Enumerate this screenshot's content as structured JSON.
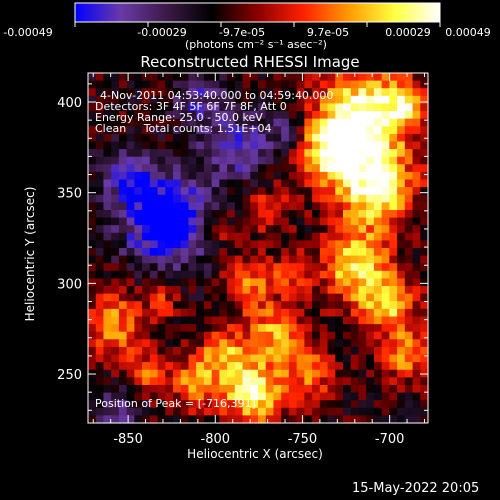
{
  "colorbar": {
    "ticks": [
      "-0.00049",
      "-0.00029",
      "-9.7e-05",
      "9.7e-05",
      "0.00029",
      "0.00049"
    ],
    "min": -0.00049,
    "max": 0.00049,
    "unit_label": "(photons cm⁻² s⁻¹ asec⁻²)"
  },
  "chart_data": {
    "type": "heatmap",
    "title": "Reconstructed RHESSI Image",
    "xlabel": "Heliocentric X (arcsec)",
    "ylabel": "Heliocentric Y (arcsec)",
    "xlim": [
      -873,
      -678
    ],
    "ylim": [
      223,
      416
    ],
    "xticks": [
      -850,
      -800,
      -750,
      -700
    ],
    "yticks": [
      250,
      300,
      350,
      400
    ],
    "colormap": [
      "#0000ff",
      "#6a3aa8",
      "#3c1a48",
      "#000000",
      "#8a0000",
      "#ff2000",
      "#ff9a00",
      "#ffff40",
      "#ffffff"
    ],
    "annotations": [
      "4-Nov-2011 04:53:40.000 to 04:59:40.000",
      "Detectors: 3F 4F 5F 6F 7F 8F, Att 0",
      "Energy Range: 25.0 - 50.0 keV",
      "Clean     Total counts: 1.51E+04"
    ],
    "peak_label": "Position of Peak = [-716,391]",
    "peak": [
      -716,
      391
    ]
  },
  "footer": {
    "timestamp": "15-May-2022 20:05"
  }
}
